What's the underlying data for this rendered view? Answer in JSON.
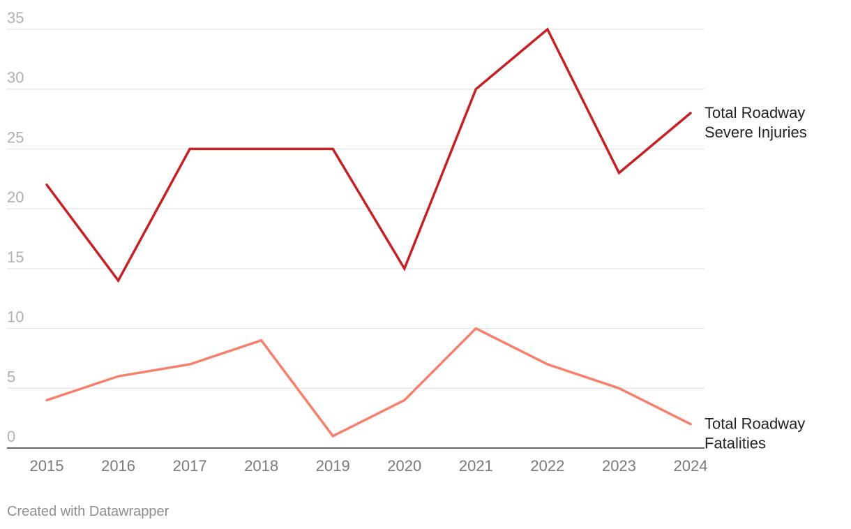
{
  "chart_data": {
    "type": "line",
    "title": "",
    "xlabel": "",
    "ylabel": "",
    "x": [
      "2015",
      "2016",
      "2017",
      "2018",
      "2019",
      "2020",
      "2021",
      "2022",
      "2023",
      "2024"
    ],
    "ylim": [
      0,
      35
    ],
    "y_ticks": [
      "0",
      "5",
      "10",
      "15",
      "20",
      "25",
      "30",
      "35"
    ],
    "grid": true,
    "series": [
      {
        "name": "Total Roadway Severe Injuries",
        "label_lines": [
          "Total Roadway",
          "Severe Injuries"
        ],
        "color": "#c42025",
        "values": [
          22,
          14,
          25,
          25,
          25,
          15,
          30,
          35,
          23,
          28
        ]
      },
      {
        "name": "Total Roadway Fatalities",
        "label_lines": [
          "Total Roadway",
          "Fatalities"
        ],
        "color": "#f5806b",
        "values": [
          4,
          6,
          7,
          9,
          1,
          4,
          10,
          7,
          5,
          2
        ]
      }
    ]
  },
  "credit": "Created with Datawrapper"
}
